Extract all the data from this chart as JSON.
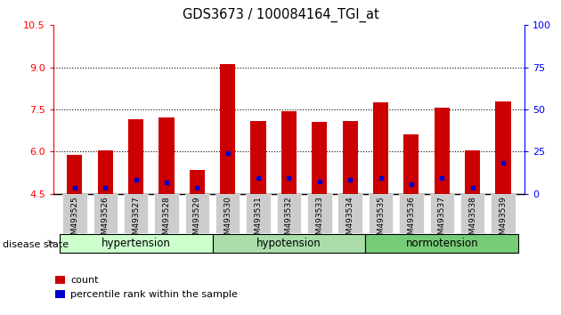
{
  "title": "GDS3673 / 100084164_TGI_at",
  "samples": [
    "GSM493525",
    "GSM493526",
    "GSM493527",
    "GSM493528",
    "GSM493529",
    "GSM493530",
    "GSM493531",
    "GSM493532",
    "GSM493533",
    "GSM493534",
    "GSM493535",
    "GSM493536",
    "GSM493537",
    "GSM493538",
    "GSM493539"
  ],
  "bar_values": [
    5.9,
    6.05,
    7.15,
    7.2,
    5.35,
    9.12,
    7.1,
    7.45,
    7.05,
    7.1,
    7.75,
    6.6,
    7.55,
    6.05,
    7.8
  ],
  "percentile_values": [
    4.72,
    4.72,
    5.0,
    4.9,
    4.7,
    5.95,
    5.05,
    5.05,
    4.95,
    5.0,
    5.05,
    4.85,
    5.05,
    4.72,
    5.6
  ],
  "bar_color": "#cc0000",
  "percentile_color": "#0000cc",
  "ymin": 4.5,
  "ymax": 10.5,
  "yticks_left": [
    4.5,
    6.0,
    7.5,
    9.0,
    10.5
  ],
  "yticks_right": [
    0,
    25,
    50,
    75,
    100
  ],
  "groups": [
    {
      "label": "hypertension",
      "start": 0,
      "end": 5
    },
    {
      "label": "hypotension",
      "start": 5,
      "end": 10
    },
    {
      "label": "normotension",
      "start": 10,
      "end": 15
    }
  ],
  "group_colors": [
    "#ccffcc",
    "#aaddaa",
    "#77cc77"
  ],
  "disease_label": "disease state",
  "legend_count_label": "count",
  "legend_percentile_label": "percentile rank within the sample",
  "bar_width": 0.5,
  "tick_label_bg": "#cccccc"
}
